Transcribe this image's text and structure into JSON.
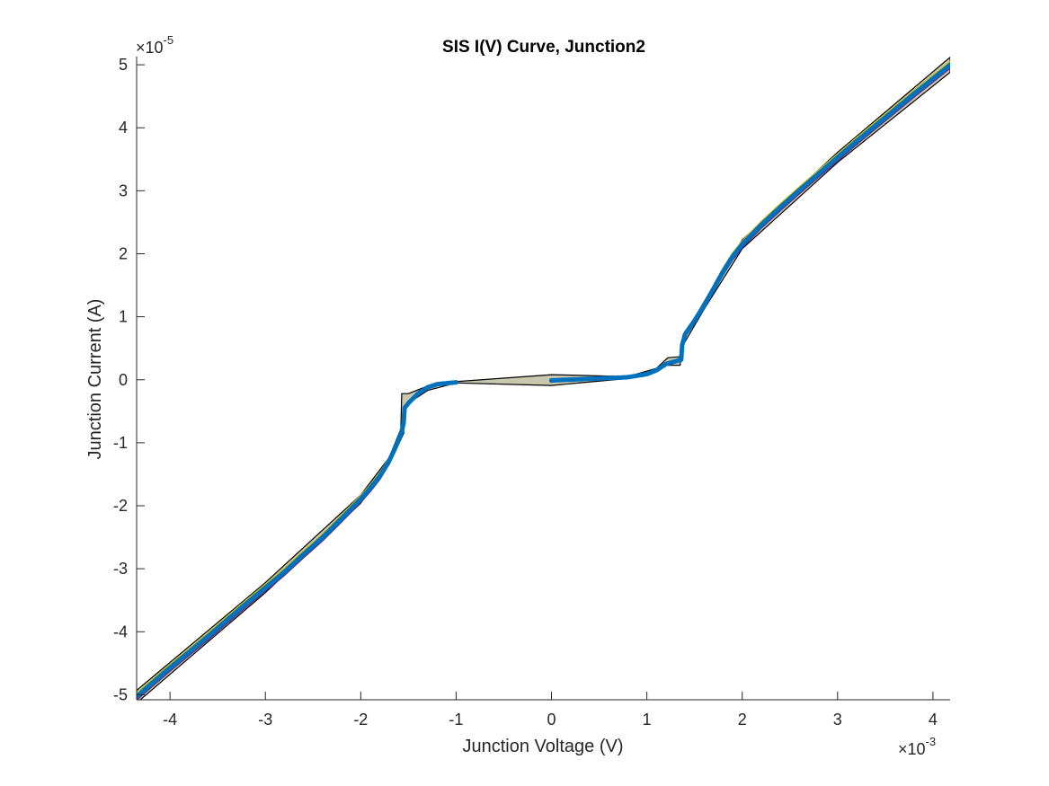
{
  "chart_data": {
    "type": "scatter",
    "title": "SIS I(V) Curve, Junction2",
    "xlabel": "Junction Voltage (V)",
    "ylabel": "Junction Current (A)",
    "x_exponent_label": "×10",
    "x_exponent_power": "-3",
    "y_exponent_label": "×10",
    "y_exponent_power": "-5",
    "xlim": [
      -0.00435,
      0.00418
    ],
    "ylim": [
      -5.08e-05,
      5.13e-05
    ],
    "x_ticks": [
      -0.004,
      -0.003,
      -0.002,
      -0.001,
      0,
      0.001,
      0.002,
      0.003,
      0.004
    ],
    "x_tick_labels": [
      "-4",
      "-3",
      "-2",
      "-1",
      "0",
      "1",
      "2",
      "3",
      "4"
    ],
    "y_ticks": [
      -5e-05,
      -4e-05,
      -3e-05,
      -2e-05,
      -1e-05,
      0,
      1e-05,
      2e-05,
      3e-05,
      4e-05,
      5e-05
    ],
    "y_tick_labels": [
      "-5",
      "-4",
      "-3",
      "-2",
      "-1",
      "0",
      "1",
      "2",
      "3",
      "4",
      "5"
    ],
    "grid": false,
    "colors": {
      "points": "#0072BD",
      "polygon_fill": "#C9C7AE",
      "polygon_edge": "#000000",
      "fit_line_yellow": "#D4C21A",
      "fit_line_purple": "#5B2A86",
      "axes": "#262626"
    },
    "series": [
      {
        "values": [
          [
            -0.00435,
            -5.03e-05
          ],
          [
            -0.0042,
            -4.83e-05
          ],
          [
            -0.004,
            -4.57e-05
          ],
          [
            -0.0038,
            -4.32e-05
          ],
          [
            -0.0036,
            -4.07e-05
          ],
          [
            -0.0034,
            -3.81e-05
          ],
          [
            -0.0032,
            -3.55e-05
          ],
          [
            -0.003,
            -3.3e-05
          ],
          [
            -0.0028,
            -3.05e-05
          ],
          [
            -0.0026,
            -2.77e-05
          ],
          [
            -0.0024,
            -2.5e-05
          ],
          [
            -0.0022,
            -2.2e-05
          ],
          [
            -0.002,
            -1.89e-05
          ],
          [
            -0.0019,
            -1.72e-05
          ],
          [
            -0.0018,
            -1.53e-05
          ],
          [
            -0.0017,
            -1.28e-05
          ],
          [
            -0.00165,
            -1.12e-05
          ],
          [
            -0.0016,
            -9.4e-06
          ],
          [
            -0.00157,
            -8.2e-06
          ],
          [
            -0.00155,
            -6.8e-06
          ],
          [
            -0.00154,
            -4.5e-06
          ],
          [
            -0.0015,
            -3.7e-06
          ],
          [
            -0.0014,
            -2.2e-06
          ],
          [
            -0.0013,
            -1.2e-06
          ],
          [
            -0.0012,
            -7e-07
          ],
          [
            -0.001,
            -4e-07
          ],
          [
            0,
            -1e-07
          ],
          [
            0.0008,
            4e-07
          ],
          [
            0.001,
            9e-07
          ],
          [
            0.0011,
            1.5e-06
          ],
          [
            0.0012,
            2.5e-06
          ],
          [
            0.00136,
            3.2e-06
          ],
          [
            0.00137,
            5.5e-06
          ],
          [
            0.0014,
            7.2e-06
          ],
          [
            0.0015,
            9.4e-06
          ],
          [
            0.0016,
            1.18e-05
          ],
          [
            0.0017,
            1.45e-05
          ],
          [
            0.0018,
            1.72e-05
          ],
          [
            0.0019,
            1.96e-05
          ],
          [
            0.002,
            2.15e-05
          ],
          [
            0.0022,
            2.46e-05
          ],
          [
            0.0024,
            2.74e-05
          ],
          [
            0.0026,
            3.01e-05
          ],
          [
            0.0028,
            3.27e-05
          ],
          [
            0.003,
            3.53e-05
          ],
          [
            0.0032,
            3.79e-05
          ],
          [
            0.0034,
            4.04e-05
          ],
          [
            0.0036,
            4.29e-05
          ],
          [
            0.0038,
            4.54e-05
          ],
          [
            0.004,
            4.78e-05
          ],
          [
            0.00418,
            5e-05
          ]
        ]
      }
    ],
    "hysteresis_region": [
      [
        -0.00435,
        -4.93e-05
      ],
      [
        -0.003,
        -3.22e-05
      ],
      [
        -0.002,
        -1.83e-05
      ],
      [
        -0.0017,
        -1.23e-05
      ],
      [
        -0.00158,
        -7.8e-06
      ],
      [
        -0.00157,
        -2.2e-06
      ],
      [
        -0.0015,
        -2.2e-06
      ],
      [
        -0.0013,
        -1e-06
      ],
      [
        -0.0011,
        -4e-07
      ],
      [
        0,
        8e-07
      ],
      [
        0.0008,
        5e-07
      ],
      [
        0.0011,
        1.8e-06
      ],
      [
        0.00122,
        3.5e-06
      ],
      [
        0.00138,
        3.7e-06
      ],
      [
        0.00138,
        6.5e-06
      ],
      [
        0.0016,
        1.24e-05
      ],
      [
        0.002,
        2.22e-05
      ],
      [
        0.003,
        3.61e-05
      ],
      [
        0.00418,
        5.12e-05
      ],
      [
        0.00418,
        4.88e-05
      ],
      [
        0.003,
        3.45e-05
      ],
      [
        0.002,
        2.08e-05
      ],
      [
        0.0016,
        1.12e-05
      ],
      [
        0.00136,
        5e-06
      ],
      [
        0.00135,
        2.3e-06
      ],
      [
        0.0012,
        2.3e-06
      ],
      [
        0.001,
        8e-07
      ],
      [
        0.0008,
        2e-07
      ],
      [
        0,
        -9e-07
      ],
      [
        -0.001,
        -5e-07
      ],
      [
        -0.0013,
        -1.7e-06
      ],
      [
        -0.00145,
        -3.2e-06
      ],
      [
        -0.00154,
        -4.2e-06
      ],
      [
        -0.00155,
        -8.5e-06
      ],
      [
        -0.0017,
        -1.34e-05
      ],
      [
        -0.002,
        -1.96e-05
      ],
      [
        -0.003,
        -3.38e-05
      ],
      [
        -0.00435,
        -5.13e-05
      ]
    ]
  }
}
